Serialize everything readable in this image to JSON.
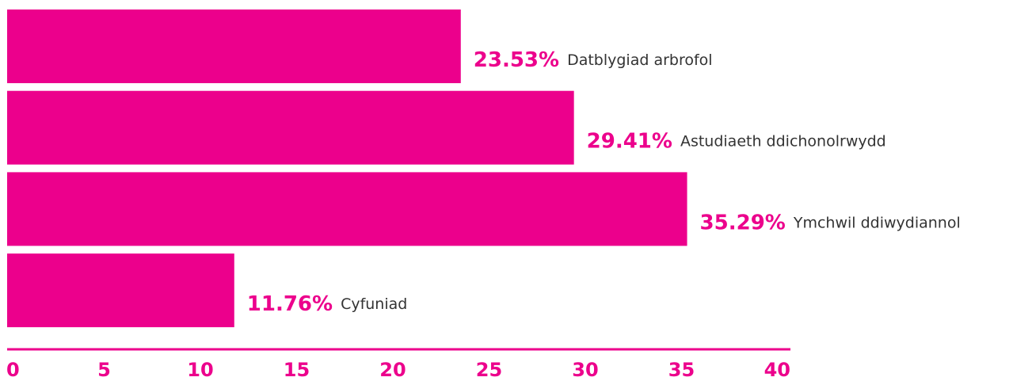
{
  "chart_data": {
    "type": "barh",
    "categories": [
      "Datblygiad arbrofol",
      "Astudiaeth ddichonolrwydd",
      "Ymchwil ddiwydiannol",
      "Cyfuniad"
    ],
    "values": [
      23.53,
      29.41,
      35.29,
      11.76
    ],
    "value_labels": [
      "23.53%",
      "29.41%",
      "35.29%",
      "11.76%"
    ],
    "color": "#ec008c",
    "xlim": [
      0,
      40
    ],
    "xticks": [
      0,
      5,
      10,
      15,
      20,
      25,
      30,
      35,
      40
    ]
  }
}
